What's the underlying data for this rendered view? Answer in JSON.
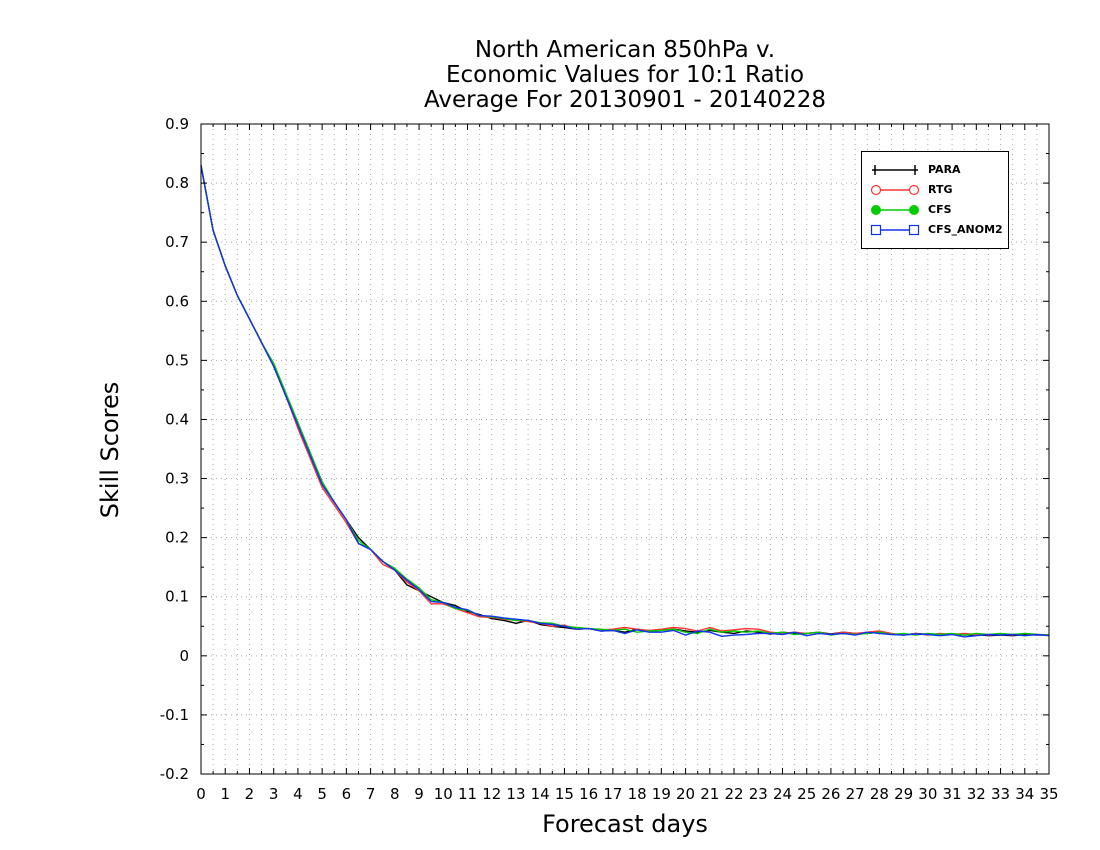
{
  "chart_data": {
    "type": "line",
    "title": [
      "North American 850hPa v.",
      "Economic Values for 10:1 Ratio",
      "Average For 20130901 - 20140228"
    ],
    "xlabel": "Forecast days",
    "ylabel": "Skill Scores",
    "xlim": [
      0,
      35
    ],
    "ylim": [
      -0.2,
      0.9
    ],
    "xticks": [
      0,
      1,
      2,
      3,
      4,
      5,
      6,
      7,
      8,
      9,
      10,
      11,
      12,
      13,
      14,
      15,
      16,
      17,
      18,
      19,
      20,
      21,
      22,
      23,
      24,
      25,
      26,
      27,
      28,
      29,
      30,
      31,
      32,
      33,
      34,
      35
    ],
    "yticks": [
      -0.2,
      -0.1,
      0,
      0.1,
      0.2,
      0.3,
      0.4,
      0.5,
      0.6,
      0.7,
      0.8,
      0.9
    ],
    "ytick_labels": [
      "-0.2",
      "-0.1",
      "0",
      "0.1",
      "0.2",
      "0.3",
      "0.4",
      "0.5",
      "0.6",
      "0.7",
      "0.8",
      "0.9"
    ],
    "grid": true,
    "legend_position": "top-right",
    "x": [
      0,
      0.5,
      1,
      1.5,
      2,
      2.5,
      3,
      3.5,
      4,
      4.5,
      5,
      5.5,
      6,
      6.5,
      7,
      7.5,
      8,
      8.5,
      9,
      9.5,
      10,
      10.5,
      11,
      11.5,
      12,
      12.5,
      13,
      13.5,
      14,
      14.5,
      15,
      15.5,
      16,
      16.5,
      17,
      17.5,
      18,
      18.5,
      19,
      19.5,
      20,
      20.5,
      21,
      21.5,
      22,
      22.5,
      23,
      23.5,
      24,
      24.5,
      25,
      25.5,
      26,
      26.5,
      27,
      27.5,
      28,
      28.5,
      29,
      29.5,
      30,
      30.5,
      31,
      31.5,
      32,
      32.5,
      33,
      33.5,
      34,
      34.5,
      35
    ],
    "series": [
      {
        "name": "PARA",
        "color": "#000000",
        "marker": "plus",
        "values": [
          0.83,
          0.72,
          0.66,
          0.61,
          0.57,
          0.53,
          0.49,
          0.44,
          0.39,
          0.34,
          0.29,
          0.26,
          0.23,
          0.2,
          0.18,
          0.16,
          0.145,
          0.12,
          0.11,
          0.1,
          0.09,
          0.085,
          0.075,
          0.07,
          0.063,
          0.06,
          0.055,
          0.06,
          0.053,
          0.05,
          0.048,
          0.045,
          0.046,
          0.042,
          0.043,
          0.04,
          0.045,
          0.042,
          0.043,
          0.045,
          0.042,
          0.04,
          0.043,
          0.04,
          0.038,
          0.042,
          0.04,
          0.037,
          0.04,
          0.038,
          0.038,
          0.04,
          0.037,
          0.04,
          0.038,
          0.038,
          0.04,
          0.037,
          0.035,
          0.038,
          0.036,
          0.035,
          0.037,
          0.035,
          0.036,
          0.034,
          0.035,
          0.034,
          0.036,
          0.035,
          0.035
        ]
      },
      {
        "name": "RTG",
        "color": "#ff3333",
        "marker": "circle",
        "values": [
          0.83,
          0.72,
          0.66,
          0.61,
          0.57,
          0.53,
          0.49,
          0.44,
          0.385,
          0.335,
          0.285,
          0.255,
          0.225,
          0.19,
          0.18,
          0.155,
          0.145,
          0.125,
          0.11,
          0.088,
          0.088,
          0.08,
          0.073,
          0.066,
          0.065,
          0.062,
          0.06,
          0.058,
          0.055,
          0.05,
          0.052,
          0.045,
          0.046,
          0.044,
          0.045,
          0.048,
          0.045,
          0.043,
          0.045,
          0.048,
          0.046,
          0.042,
          0.048,
          0.042,
          0.044,
          0.046,
          0.045,
          0.04,
          0.038,
          0.04,
          0.038,
          0.04,
          0.036,
          0.04,
          0.038,
          0.04,
          0.042,
          0.038,
          0.035,
          0.038,
          0.035,
          0.038,
          0.036,
          0.038,
          0.036,
          0.035,
          0.036,
          0.035,
          0.038,
          0.036,
          0.035
        ]
      },
      {
        "name": "CFS",
        "color": "#00cc00",
        "marker": "dot",
        "values": [
          0.83,
          0.72,
          0.66,
          0.61,
          0.57,
          0.53,
          0.495,
          0.445,
          0.395,
          0.345,
          0.295,
          0.26,
          0.23,
          0.195,
          0.18,
          0.16,
          0.148,
          0.13,
          0.115,
          0.095,
          0.09,
          0.08,
          0.077,
          0.068,
          0.066,
          0.063,
          0.06,
          0.06,
          0.056,
          0.055,
          0.05,
          0.048,
          0.046,
          0.045,
          0.043,
          0.045,
          0.04,
          0.042,
          0.043,
          0.045,
          0.04,
          0.038,
          0.045,
          0.04,
          0.042,
          0.04,
          0.042,
          0.038,
          0.04,
          0.036,
          0.038,
          0.04,
          0.035,
          0.038,
          0.036,
          0.038,
          0.04,
          0.036,
          0.038,
          0.035,
          0.038,
          0.036,
          0.038,
          0.035,
          0.038,
          0.036,
          0.038,
          0.036,
          0.038,
          0.036,
          0.035
        ]
      },
      {
        "name": "CFS_ANOM2",
        "color": "#1133ee",
        "marker": "square",
        "values": [
          0.83,
          0.72,
          0.66,
          0.61,
          0.57,
          0.53,
          0.49,
          0.44,
          0.39,
          0.34,
          0.29,
          0.26,
          0.23,
          0.19,
          0.18,
          0.16,
          0.145,
          0.128,
          0.112,
          0.092,
          0.09,
          0.082,
          0.078,
          0.068,
          0.067,
          0.064,
          0.062,
          0.06,
          0.055,
          0.053,
          0.05,
          0.045,
          0.046,
          0.042,
          0.043,
          0.038,
          0.044,
          0.04,
          0.04,
          0.043,
          0.035,
          0.042,
          0.04,
          0.033,
          0.035,
          0.036,
          0.038,
          0.038,
          0.036,
          0.04,
          0.034,
          0.038,
          0.036,
          0.038,
          0.035,
          0.04,
          0.038,
          0.036,
          0.035,
          0.037,
          0.036,
          0.034,
          0.036,
          0.032,
          0.034,
          0.036,
          0.035,
          0.036,
          0.034,
          0.036,
          0.034
        ]
      }
    ]
  }
}
